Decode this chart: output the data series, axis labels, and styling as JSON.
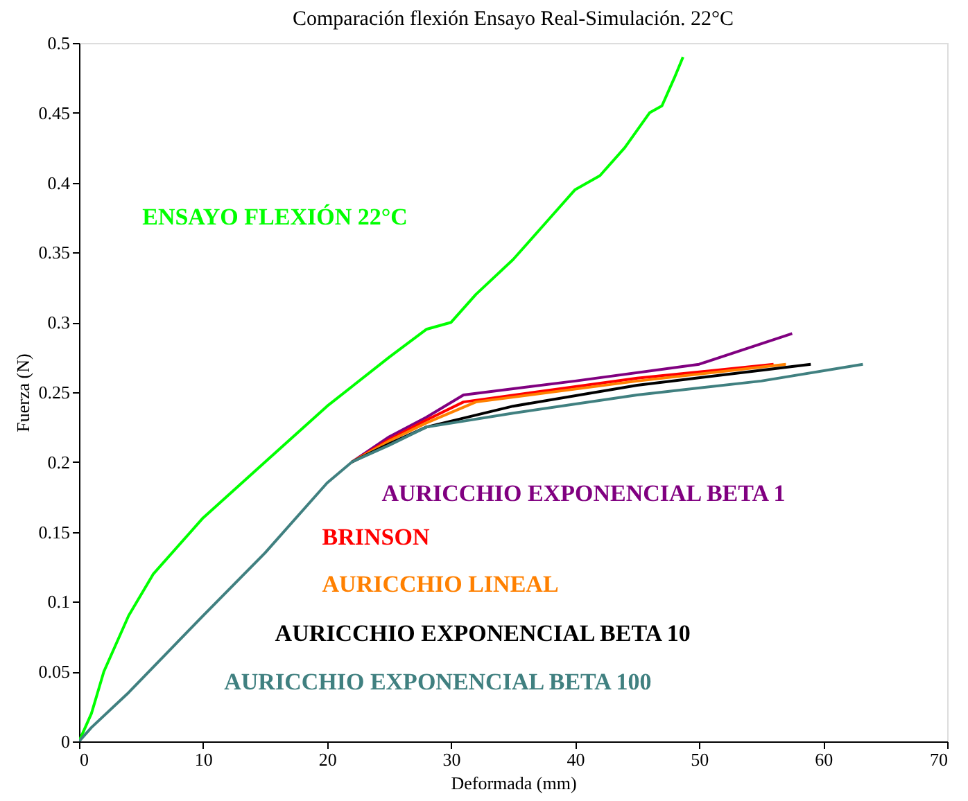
{
  "chart_data": {
    "type": "line",
    "title": "Comparación flexión Ensayo Real-Simulación. 22°C",
    "xlabel": "Deformada (mm)",
    "ylabel": "Fuerza (N)",
    "xlim": [
      0,
      70
    ],
    "xticks": [
      0,
      10,
      20,
      30,
      40,
      50,
      60,
      70
    ],
    "ylim": [
      0,
      0.5
    ],
    "yticks": [
      0,
      0.05,
      0.1,
      0.15,
      0.2,
      0.25,
      0.3,
      0.35,
      0.4,
      0.45,
      0.5
    ],
    "grid": false,
    "marker": "none",
    "line_style": "solid",
    "series": [
      {
        "name": "ENSAYO FLEXIÓN 22°C",
        "color": "#00ff00",
        "x": [
          0,
          1,
          2,
          4,
          6,
          10,
          15,
          20,
          25,
          28,
          30,
          32,
          35,
          38,
          40,
          42,
          44,
          46,
          47,
          48,
          48.7
        ],
        "values": [
          0,
          0.02,
          0.05,
          0.09,
          0.12,
          0.16,
          0.2,
          0.24,
          0.275,
          0.295,
          0.3,
          0.32,
          0.345,
          0.375,
          0.395,
          0.405,
          0.425,
          0.45,
          0.455,
          0.475,
          0.49
        ]
      },
      {
        "name": "AURICCHIO EXPONENCIAL BETA 1",
        "color": "#800080",
        "x": [
          22,
          25,
          28,
          31,
          40,
          50,
          57.5
        ],
        "values": [
          0.2,
          0.218,
          0.232,
          0.248,
          0.258,
          0.27,
          0.292
        ]
      },
      {
        "name": "BRINSON",
        "color": "#ff0000",
        "x": [
          22,
          25,
          28,
          31,
          45,
          56
        ],
        "values": [
          0.2,
          0.216,
          0.23,
          0.243,
          0.26,
          0.27
        ]
      },
      {
        "name": "AURICCHIO LINEAL",
        "color": "#ff8000",
        "x": [
          22,
          25,
          28,
          32,
          45,
          57
        ],
        "values": [
          0.2,
          0.215,
          0.228,
          0.243,
          0.258,
          0.27
        ]
      },
      {
        "name": "AURICCHIO EXPONENCIAL BETA 10",
        "color": "#000000",
        "x": [
          22,
          25,
          28,
          35,
          45,
          59
        ],
        "values": [
          0.2,
          0.213,
          0.225,
          0.24,
          0.255,
          0.27
        ]
      },
      {
        "name": "AURICCHIO EXPONENCIAL BETA 100",
        "color": "#408080",
        "x": [
          0,
          1,
          4,
          10,
          15,
          20,
          22,
          25,
          28,
          35,
          45,
          55,
          63.2
        ],
        "values": [
          0,
          0.01,
          0.035,
          0.09,
          0.135,
          0.185,
          0.2,
          0.212,
          0.225,
          0.235,
          0.248,
          0.258,
          0.27
        ]
      }
    ]
  }
}
